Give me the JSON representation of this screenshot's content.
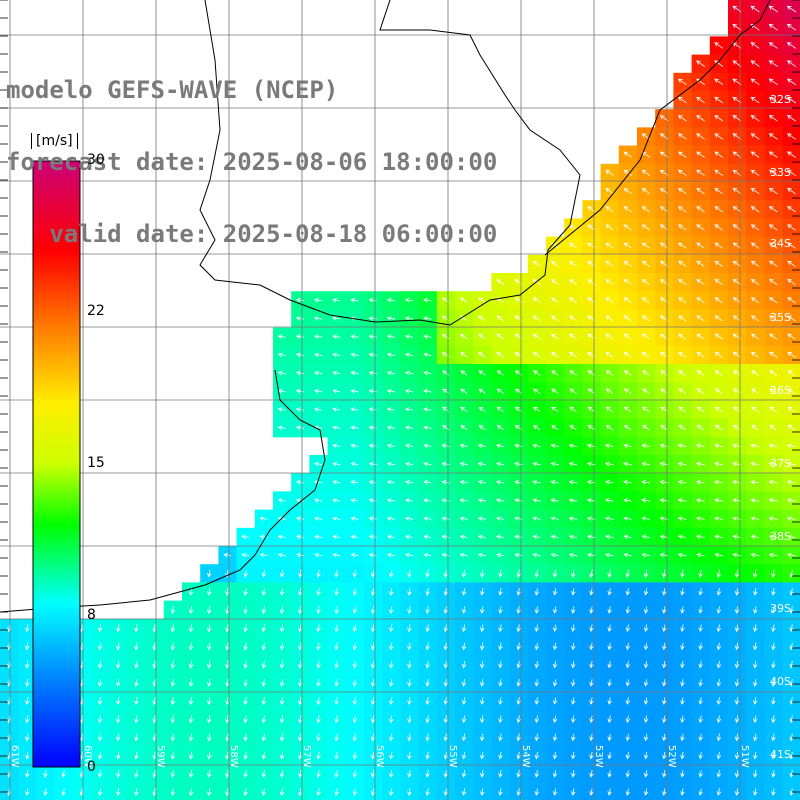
{
  "title": {
    "line1": "modelo GEFS-WAVE (NCEP)",
    "line2": "forecast date: 2025-08-06 18:00:00",
    "line3": "   valid date: 2025-08-18 06:00:00"
  },
  "colorbar": {
    "unit": "[m/s]",
    "ticks": [
      "30",
      "22",
      "15",
      "8",
      "0"
    ],
    "stops": [
      "#0000ff",
      "#0088ff",
      "#00ffff",
      "#00ff00",
      "#ffff00",
      "#ff8800",
      "#ff0000",
      "#cc0077"
    ]
  },
  "lat_labels": [
    "32S",
    "33S",
    "34S",
    "35S",
    "36S",
    "37S",
    "38S",
    "39S",
    "40S",
    "41S"
  ],
  "lon_labels": [
    "61W",
    "60W",
    "59W",
    "58W",
    "57W",
    "56W",
    "55W",
    "54W",
    "53W",
    "52W",
    "51W"
  ],
  "colors": {
    "land": "#ffffff",
    "grid": "#777777",
    "coast": "#000000",
    "arrow": "#ffffff"
  }
}
